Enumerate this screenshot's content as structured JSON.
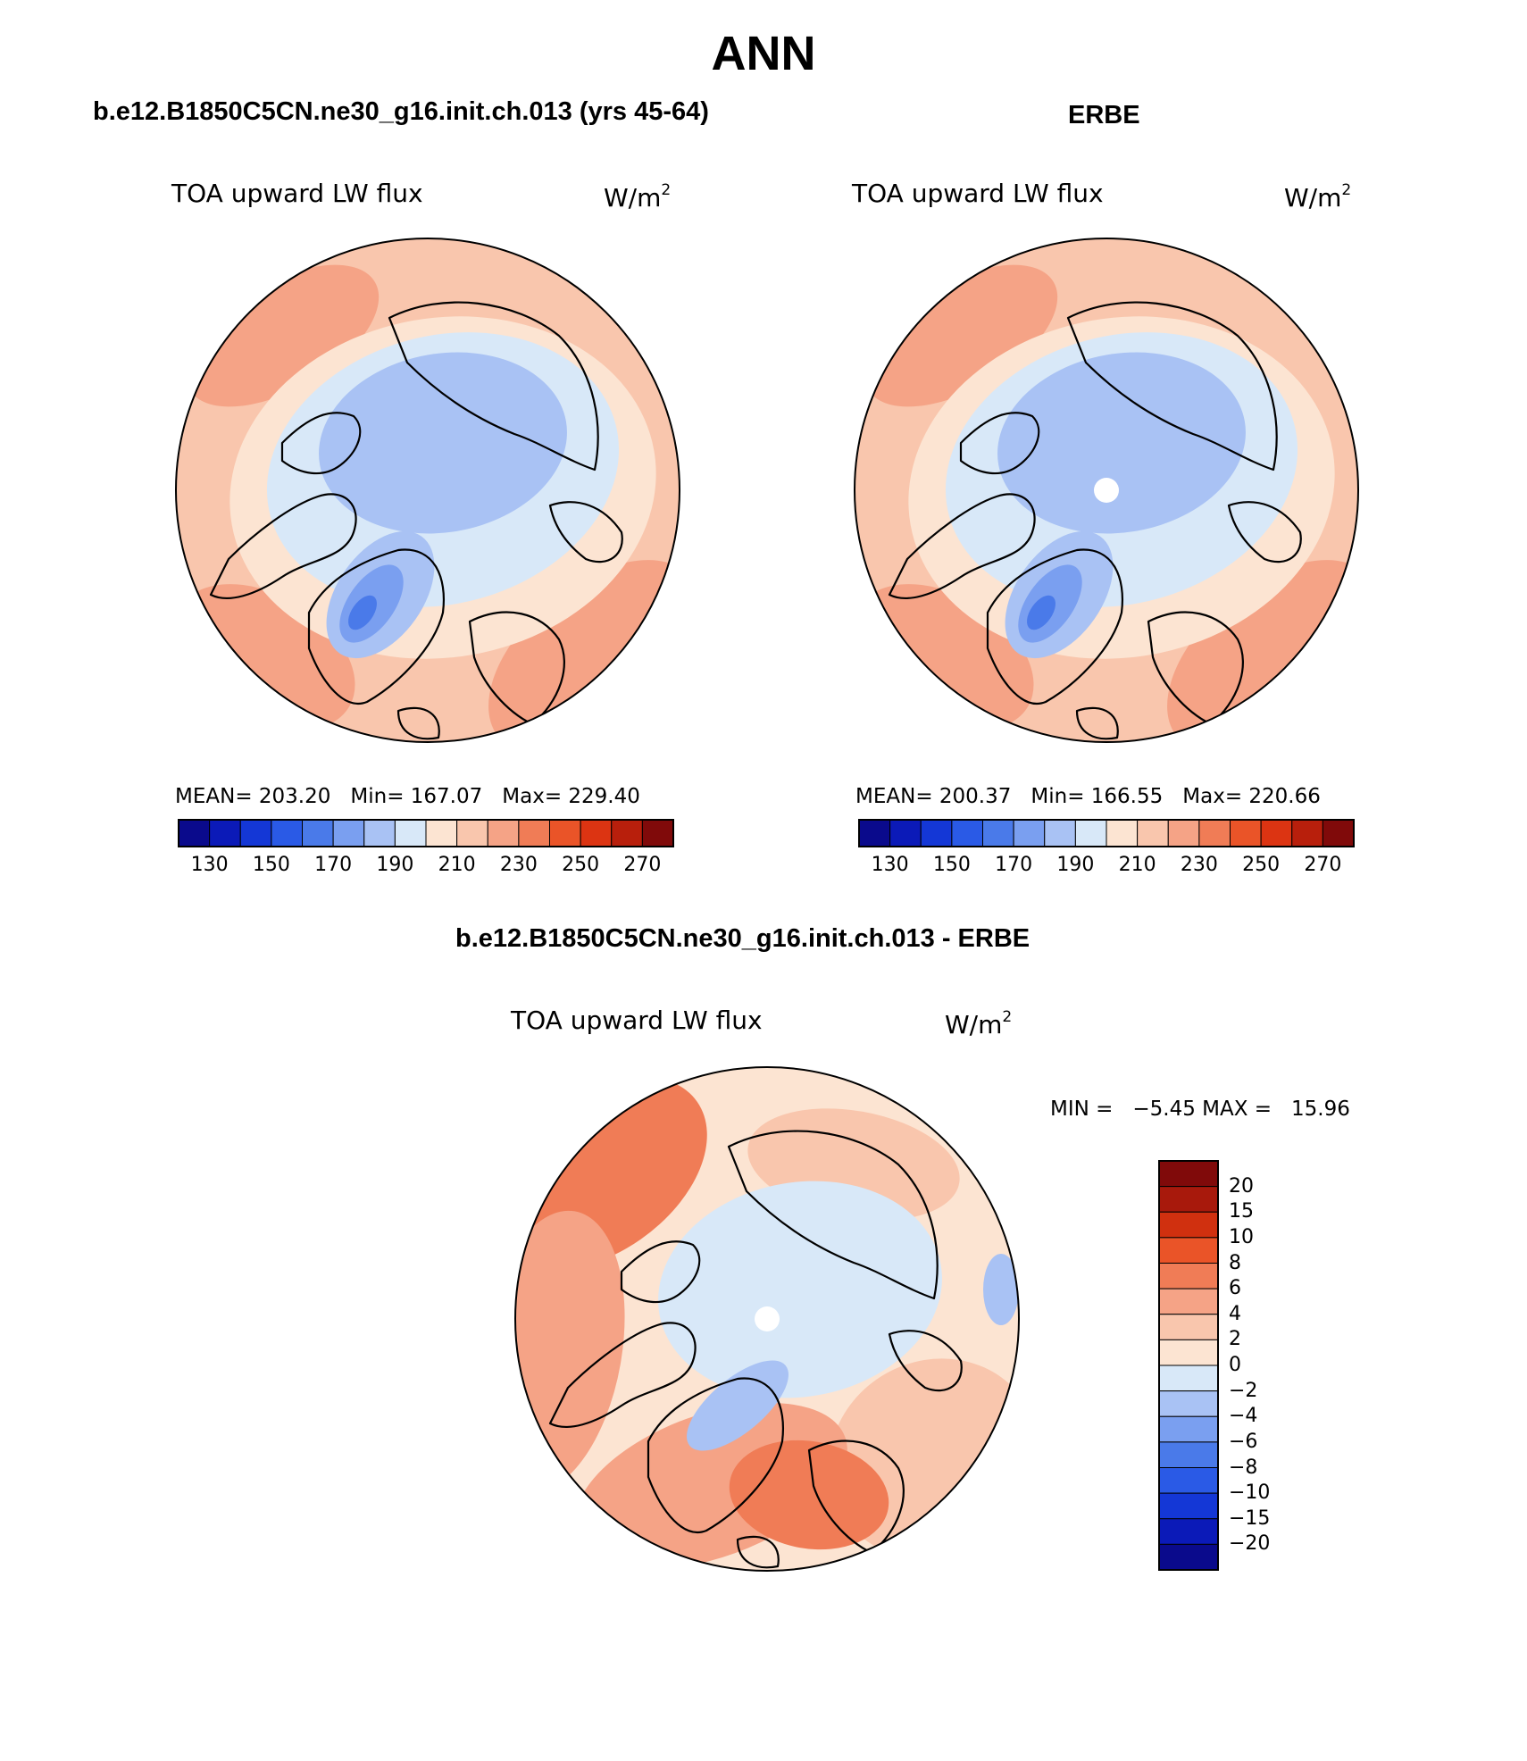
{
  "figure": {
    "title": "ANN",
    "colors": {
      "ocean_outline": "#000000",
      "coast": "#000000",
      "pole_hole": "#ffffff"
    }
  },
  "panels": [
    {
      "id": "model",
      "title": "b.e12.B1850C5CN.ne30_g16.init.ch.013 (yrs 45-64)",
      "variable": "TOA upward LW flux",
      "units_base": "W/m",
      "units_exp": "2",
      "stats": {
        "mean": "MEAN= 203.20",
        "min": "Min= 167.07",
        "max": "Max= 229.40"
      },
      "colorbar": {
        "colors": [
          "#0a0a8c",
          "#0b1ab8",
          "#1437d6",
          "#2a5ae6",
          "#4a7ae9",
          "#7a9ff0",
          "#a9c2f4",
          "#d8e8f8",
          "#fce4d2",
          "#f9c6ad",
          "#f5a386",
          "#f07c56",
          "#ea5428",
          "#dc3412",
          "#b81f0c",
          "#800a0a"
        ],
        "labels": [
          "130",
          "150",
          "170",
          "190",
          "210",
          "230",
          "250",
          "270"
        ]
      },
      "map": {
        "pole_hole": false
      }
    },
    {
      "id": "obs",
      "title": "ERBE",
      "variable": "TOA upward LW flux",
      "units_base": "W/m",
      "units_exp": "2",
      "stats": {
        "mean": "MEAN= 200.37",
        "min": "Min= 166.55",
        "max": "Max= 220.66"
      },
      "colorbar": {
        "colors": [
          "#0a0a8c",
          "#0b1ab8",
          "#1437d6",
          "#2a5ae6",
          "#4a7ae9",
          "#7a9ff0",
          "#a9c2f4",
          "#d8e8f8",
          "#fce4d2",
          "#f9c6ad",
          "#f5a386",
          "#f07c56",
          "#ea5428",
          "#dc3412",
          "#b81f0c",
          "#800a0a"
        ],
        "labels": [
          "130",
          "150",
          "170",
          "190",
          "210",
          "230",
          "250",
          "270"
        ]
      },
      "map": {
        "pole_hole": true
      }
    },
    {
      "id": "diff",
      "title": "b.e12.B1850C5CN.ne30_g16.init.ch.013 - ERBE",
      "variable": "TOA upward LW flux",
      "units_base": "W/m",
      "units_exp": "2",
      "minmax": "MIN =   −5.45 MAX =   15.96",
      "colorbar": {
        "colors": [
          "#800a0a",
          "#a8190c",
          "#d0300f",
          "#ea5428",
          "#f07c56",
          "#f5a386",
          "#f9c6ad",
          "#fce4d2",
          "#d8e8f8",
          "#a9c2f4",
          "#7a9ff0",
          "#4a7ae9",
          "#2a5ae6",
          "#1437d6",
          "#0b1ab8",
          "#0a0a8c"
        ],
        "labels": [
          "20",
          "15",
          "10",
          "8",
          "6",
          "4",
          "2",
          "0",
          "−2",
          "−4",
          "−6",
          "−8",
          "−10",
          "−15",
          "−20"
        ]
      },
      "map": {
        "pole_hole": true
      }
    }
  ]
}
